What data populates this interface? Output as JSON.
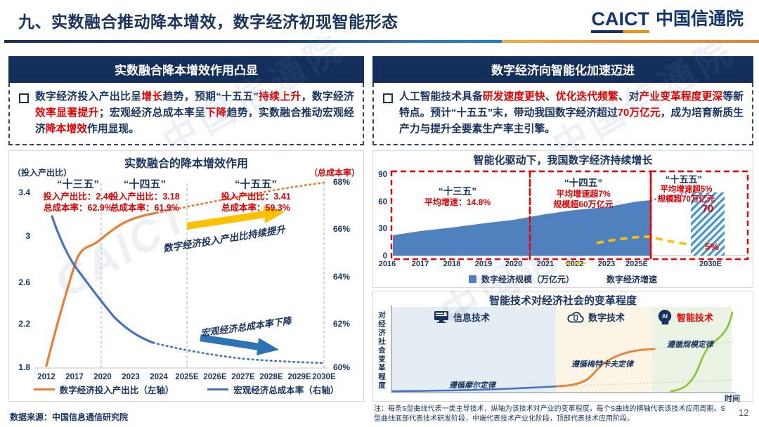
{
  "slide": {
    "title": "九、实数融合推动降本增效，数字经济初现智能形态",
    "logo": {
      "en": "CAICT",
      "cn": "中国信通院"
    },
    "source": "数据来源：中国信息通信研究院",
    "page": "12",
    "watermark": "中国信通院"
  },
  "panels": {
    "left": {
      "title": "实数融合降本增效作用凸显",
      "body": [
        {
          "t": "数字经济投入产出比呈"
        },
        {
          "t": "增长",
          "hl": true
        },
        {
          "t": "趋势，预期“十五五”"
        },
        {
          "t": "持续上升",
          "hl": true
        },
        {
          "t": "，数字经济"
        },
        {
          "t": "效率显著提升",
          "hl": true
        },
        {
          "t": "；宏观经济总成本率呈"
        },
        {
          "t": "下降",
          "hl": true
        },
        {
          "t": "趋势，实数融合推动宏观经济"
        },
        {
          "t": "降本增效",
          "hl": true
        },
        {
          "t": "作用显现。"
        }
      ]
    },
    "right": {
      "title": "数字经济向智能化加速迈进",
      "body": [
        {
          "t": "人工智能技术具备"
        },
        {
          "t": "研发速度更快",
          "hl": true
        },
        {
          "t": "、"
        },
        {
          "t": "优化迭代频繁",
          "hl": true
        },
        {
          "t": "、对"
        },
        {
          "t": "产业变革程度更深",
          "hl": true
        },
        {
          "t": "等新特点。预计“十五五”末，带动我国数字经济超过"
        },
        {
          "t": "70万亿元",
          "hl": true
        },
        {
          "t": "，成为培育新质生产力与提升全要素生产率主引擎。"
        }
      ]
    }
  },
  "chart_data": [
    {
      "type": "line",
      "title": "实数融合的降本增效作用",
      "left_axis_label": "（投入产出比）",
      "right_axis_label": "（总成本率）",
      "x": [
        "2012",
        "2017",
        "2020",
        "2023",
        "2024",
        "2025E",
        "2026E",
        "2027E",
        "2028E",
        "2029E",
        "2030E"
      ],
      "yticks_left": [
        "3.4",
        "3",
        "2.6",
        "2.2",
        "1.8"
      ],
      "yticks_right": [
        "68%",
        "66%",
        "64%",
        "62%",
        "60%"
      ],
      "ylim_left": [
        1.8,
        3.4
      ],
      "ylim_right": [
        60,
        68
      ],
      "grid": false,
      "periods": [
        {
          "label": "“十三五”",
          "stats": [
            "投入产出比：2.46",
            "总成本率：62.9%"
          ]
        },
        {
          "label": "“十四五”",
          "stats": [
            "投入产出比：3.18",
            "总成本率：61.9%"
          ]
        },
        {
          "label": "“十五五”",
          "stats": [
            "投入产出比：3.41",
            "总成本率：59.3%"
          ]
        }
      ],
      "series": [
        {
          "name": "数字经济投入产出比（左轴）",
          "axis": "left",
          "color": "#ED7D31",
          "style": "solid-then-dotted-forecast",
          "values": [
            1.85,
            2.72,
            2.95,
            3.13,
            3.2,
            3.24,
            3.28,
            3.32,
            3.36,
            3.4,
            3.44
          ]
        },
        {
          "name": "宏观经济总成本率（右轴）",
          "axis": "right",
          "color": "#4472C4",
          "style": "solid-then-dotted-forecast",
          "values": [
            66.9,
            64.3,
            62.7,
            61.5,
            61.2,
            61.0,
            60.8,
            60.6,
            60.5,
            60.4,
            60.3
          ]
        }
      ],
      "annotations": {
        "up": "数字经济投入产出比持续提升",
        "down": "宏观经济总成本率下降"
      },
      "legend": [
        "数字经济投入产出比（左轴）",
        "宏观经济总成本率（右轴）"
      ]
    },
    {
      "type": "area",
      "title": "智能化驱动下，我国数字经济持续增长",
      "x": [
        "2016",
        "2017",
        "2018",
        "2019",
        "2020",
        "2021",
        "2022",
        "2023",
        "2025E",
        "2030E"
      ],
      "yticks": [
        "90",
        "60",
        "30",
        "0"
      ],
      "ylim": [
        0,
        90
      ],
      "series": [
        {
          "name": "数字经济规模（万亿元）",
          "type": "area",
          "color": "#4E81BD",
          "values": [
            22.6,
            27.2,
            31.3,
            35.8,
            39.2,
            45.5,
            50.2,
            53.9,
            60,
            70
          ]
        },
        {
          "name": "数字经济增速",
          "type": "dashed-line",
          "color": "#FFC000",
          "end_label": "5%"
        }
      ],
      "period_boxes": [
        {
          "label": "“十三五”",
          "lines": [
            "平均增速：14.8%"
          ]
        },
        {
          "label": "“十四五”",
          "lines": [
            "平均增速超7%",
            "规模超60万亿元"
          ]
        },
        {
          "label": "“十五五”",
          "lines": [
            "平均增速超5%",
            "规模超70万亿元"
          ]
        }
      ],
      "bar_label": "70",
      "growth_label": "5%",
      "legend": [
        "数字经济规模（万亿元）",
        "数字经济增速"
      ]
    },
    {
      "type": "line",
      "title": "智能技术对经济社会的变革程度",
      "ylabel": "对经济社会变革程度",
      "xlabel": "时间",
      "zones": [
        {
          "label": "信息技术",
          "icon": "monitor-icon",
          "law": "遵循摩尔定律"
        },
        {
          "label": "数字技术",
          "icon": "cloud-icon",
          "law": "遵循梅特卡夫定律"
        },
        {
          "label": "智能技术",
          "icon": "ai-head-icon",
          "law": "遵循规模定律"
        }
      ],
      "note": "注：每条S型曲线代表一类主导技术，纵轴为该技术对产业的变革程度，每个S曲线的横轴代表该技术应用周期。S型曲线底部代表技术研发阶段，中端代表技术产业化阶段，顶部代表技术应用阶段。"
    }
  ],
  "colors": {
    "navy": "#17325F",
    "red": "#E60000",
    "orange_line": "#ED7D31",
    "blue_line": "#4472C4",
    "area_blue": "#4E81BD",
    "yellow": "#FFC000",
    "red_box": "#F20000",
    "hatch_blue": "#3F96D2"
  }
}
